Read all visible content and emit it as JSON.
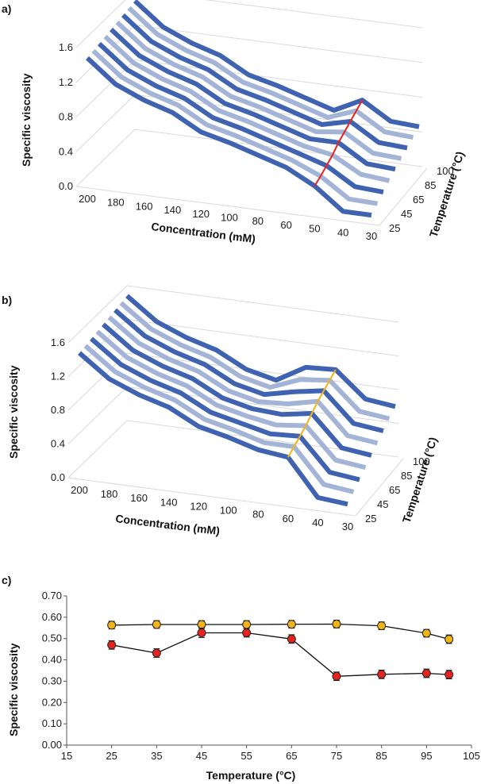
{
  "panels": {
    "a": "a)",
    "b": "b)",
    "c": "c)"
  },
  "chart_data": [
    {
      "id": "a",
      "type": "3d-ribbon-line",
      "title": "",
      "ylabel": "Specific  viscosity",
      "xlabel": "Concentration (mM)",
      "zlabel": "Temperature (°C)",
      "ylim": [
        0,
        1.6
      ],
      "y_ticks": [
        "0.0",
        "0.4",
        "0.8",
        "1.2",
        "1.6"
      ],
      "x_ticks": [
        "200",
        "180",
        "160",
        "140",
        "120",
        "100",
        "80",
        "60",
        "50",
        "40",
        "30"
      ],
      "z_ticks": [
        "25",
        "45",
        "65",
        "85",
        "100"
      ],
      "series": [
        {
          "name": "25",
          "values": [
            1.48,
            1.22,
            1.08,
            0.98,
            0.8,
            0.72,
            0.62,
            0.52,
            0.35,
            0.1,
            0.1
          ]
        },
        {
          "name": "35",
          "values": [
            1.48,
            1.22,
            1.08,
            0.98,
            0.8,
            0.72,
            0.62,
            0.52,
            0.38,
            0.16,
            0.15
          ]
        },
        {
          "name": "45",
          "values": [
            1.48,
            1.22,
            1.08,
            0.98,
            0.8,
            0.72,
            0.62,
            0.52,
            0.42,
            0.22,
            0.2
          ]
        },
        {
          "name": "55",
          "values": [
            1.48,
            1.22,
            1.08,
            0.98,
            0.8,
            0.72,
            0.62,
            0.52,
            0.46,
            0.28,
            0.25
          ]
        },
        {
          "name": "65",
          "values": [
            1.48,
            1.22,
            1.08,
            0.98,
            0.8,
            0.72,
            0.62,
            0.52,
            0.52,
            0.32,
            0.3
          ]
        },
        {
          "name": "75",
          "values": [
            1.48,
            1.22,
            1.08,
            0.98,
            0.8,
            0.72,
            0.62,
            0.52,
            0.56,
            0.36,
            0.34
          ]
        },
        {
          "name": "85",
          "values": [
            1.48,
            1.22,
            1.08,
            0.98,
            0.8,
            0.72,
            0.62,
            0.52,
            0.6,
            0.4,
            0.38
          ]
        },
        {
          "name": "95",
          "values": [
            1.48,
            1.22,
            1.08,
            0.98,
            0.8,
            0.72,
            0.62,
            0.52,
            0.64,
            0.44,
            0.42
          ]
        },
        {
          "name": "100",
          "values": [
            1.48,
            1.22,
            1.08,
            0.98,
            0.8,
            0.72,
            0.62,
            0.52,
            0.68,
            0.48,
            0.46
          ]
        }
      ],
      "highlight": {
        "color": "#e8231f",
        "category_index": 8
      }
    },
    {
      "id": "b",
      "type": "3d-ribbon-line",
      "title": "",
      "ylabel": "Specific  viscosity",
      "xlabel": "Concentration (mM)",
      "zlabel": "Temperature (°C)",
      "ylim": [
        0,
        1.6
      ],
      "y_ticks": [
        "0.0",
        "0.4",
        "0.8",
        "1.2",
        "1.6"
      ],
      "x_ticks": [
        "200",
        "180",
        "160",
        "140",
        "120",
        "100",
        "80",
        "60",
        "40",
        "30"
      ],
      "z_ticks": [
        "25",
        "45",
        "65",
        "85",
        "100"
      ],
      "series": [
        {
          "name": "25",
          "values": [
            1.48,
            1.22,
            1.08,
            0.98,
            0.8,
            0.72,
            0.62,
            0.58,
            0.15,
            0.12
          ]
        },
        {
          "name": "35",
          "values": [
            1.48,
            1.22,
            1.08,
            0.98,
            0.8,
            0.72,
            0.62,
            0.62,
            0.22,
            0.18
          ]
        },
        {
          "name": "45",
          "values": [
            1.48,
            1.22,
            1.08,
            0.98,
            0.8,
            0.72,
            0.64,
            0.66,
            0.28,
            0.24
          ]
        },
        {
          "name": "55",
          "values": [
            1.48,
            1.22,
            1.08,
            0.98,
            0.8,
            0.72,
            0.66,
            0.7,
            0.34,
            0.3
          ]
        },
        {
          "name": "65",
          "values": [
            1.48,
            1.22,
            1.08,
            0.98,
            0.8,
            0.72,
            0.7,
            0.76,
            0.4,
            0.36
          ]
        },
        {
          "name": "75",
          "values": [
            1.48,
            1.22,
            1.08,
            0.98,
            0.8,
            0.72,
            0.74,
            0.82,
            0.46,
            0.42
          ]
        },
        {
          "name": "85",
          "values": [
            1.48,
            1.22,
            1.08,
            0.98,
            0.8,
            0.72,
            0.8,
            0.86,
            0.52,
            0.48
          ]
        },
        {
          "name": "95",
          "values": [
            1.48,
            1.22,
            1.08,
            0.98,
            0.8,
            0.72,
            0.86,
            0.9,
            0.58,
            0.54
          ]
        },
        {
          "name": "100",
          "values": [
            1.48,
            1.22,
            1.08,
            0.98,
            0.8,
            0.72,
            0.92,
            0.94,
            0.64,
            0.6
          ]
        }
      ],
      "highlight": {
        "color": "#f2b417",
        "category_index": 7
      }
    },
    {
      "id": "c",
      "type": "line",
      "title": "",
      "xlabel": "Temperature (°C)",
      "ylabel": "Specific  viscosity",
      "xlim": [
        15,
        105
      ],
      "ylim": [
        0,
        0.7
      ],
      "x_ticks": [
        "15",
        "25",
        "35",
        "45",
        "55",
        "65",
        "75",
        "85",
        "95",
        "105"
      ],
      "y_ticks": [
        "0.00",
        "0.10",
        "0.20",
        "0.30",
        "0.40",
        "0.50",
        "0.60",
        "0.70"
      ],
      "series": [
        {
          "name": "yellow",
          "color": "#f2b417",
          "x": [
            25,
            35,
            45,
            55,
            65,
            75,
            85,
            95,
            100
          ],
          "values": [
            0.563,
            0.566,
            0.566,
            0.566,
            0.567,
            0.568,
            0.56,
            0.525,
            0.497
          ],
          "errors": [
            0.018,
            0.018,
            0.018,
            0.018,
            0.018,
            0.018,
            0.018,
            0.018,
            0.02
          ]
        },
        {
          "name": "red",
          "color": "#e8231f",
          "x": [
            25,
            35,
            45,
            55,
            65,
            75,
            85,
            95,
            100
          ],
          "values": [
            0.47,
            0.432,
            0.527,
            0.527,
            0.498,
            0.323,
            0.332,
            0.337,
            0.331
          ],
          "errors": [
            0.02,
            0.02,
            0.022,
            0.02,
            0.02,
            0.02,
            0.02,
            0.02,
            0.02
          ]
        }
      ]
    }
  ]
}
